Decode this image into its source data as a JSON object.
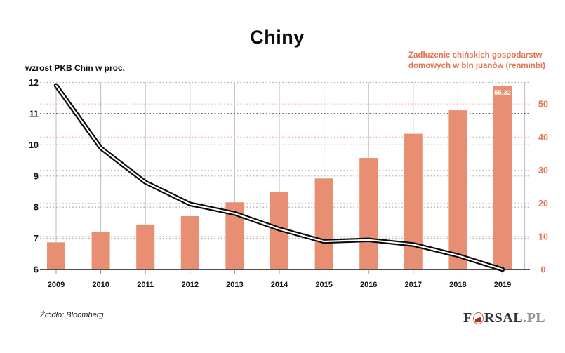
{
  "title": "Chiny",
  "legends": {
    "left": "wzrost PKB Chin w proc.",
    "right": "Zadłużenie chińskich gospodarstw\ndomowych w bln juanów (renminbi)"
  },
  "footer": {
    "source": "Źródło: Bloomberg"
  },
  "logo": {
    "f": "F",
    "rsal": "RSAL",
    "pl": ".PL",
    "o_icon": "bar-chart-circle-icon"
  },
  "colors": {
    "bar": "#e88e72",
    "accent_text": "#e2714e",
    "grid_pink": "#f2bca9",
    "grid_gray": "#b4b4b4",
    "grid_dark": "#3c3c3c",
    "vertical_line": "#bdbdbd",
    "baseline": "#4d4d4d",
    "line_outer": "#0a0a0a",
    "line_core": "#ffffff",
    "bar_label": "#ffffff"
  },
  "chart_data": {
    "type": "bar",
    "title": "Chiny",
    "categories": [
      "2009",
      "2010",
      "2011",
      "2012",
      "2013",
      "2014",
      "2015",
      "2016",
      "2017",
      "2018",
      "2019"
    ],
    "series": [
      {
        "name": "Zadłużenie chińskich gospodarstw domowych w bln juanów (renminbi)",
        "type": "bar",
        "axis": "right",
        "values": [
          8.2,
          11.3,
          13.6,
          16.1,
          20.3,
          23.5,
          27.5,
          33.7,
          41.0,
          48.1,
          55.32
        ],
        "last_value_label": "55,32"
      },
      {
        "name": "wzrost PKB Chin w proc.",
        "type": "line",
        "axis": "left",
        "values": [
          11.9,
          9.9,
          8.8,
          8.1,
          7.8,
          7.3,
          6.9,
          6.95,
          6.8,
          6.45,
          6.0
        ]
      }
    ],
    "left_axis": {
      "label": "wzrost PKB Chin w proc.",
      "min": 6,
      "max": 12,
      "ticks": [
        12,
        11,
        10,
        9,
        8,
        7,
        6
      ]
    },
    "right_axis": {
      "label": "Zadłużenie chińskich gospodarstw domowych w bln juanów (renminbi)",
      "min": 0,
      "max": 56.5,
      "ticks": [
        50,
        40,
        30,
        20,
        10,
        0
      ]
    },
    "grid": "dotted horizontal (gray at left-axis integers, salmon at right-axis tens), solid gray verticals at each year",
    "legend_position": "top (left label black, right label salmon)"
  }
}
